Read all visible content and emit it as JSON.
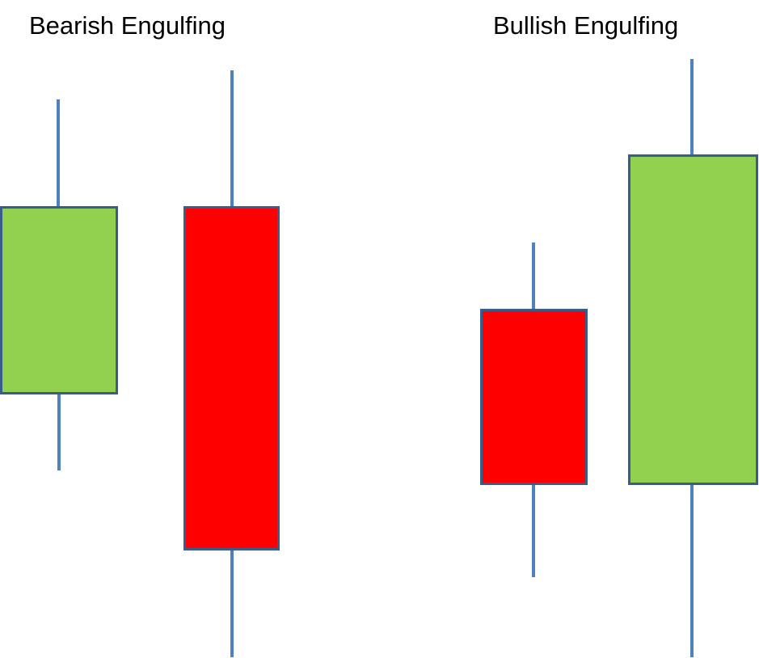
{
  "titles": {
    "bearish": "Bearish Engulfing",
    "bullish": "Bullish Engulfing"
  },
  "colors": {
    "bullish_body": "#92D050",
    "bearish_body": "#FF0000",
    "body_border": "#385D8A",
    "wick": "#4F81BD"
  }
}
